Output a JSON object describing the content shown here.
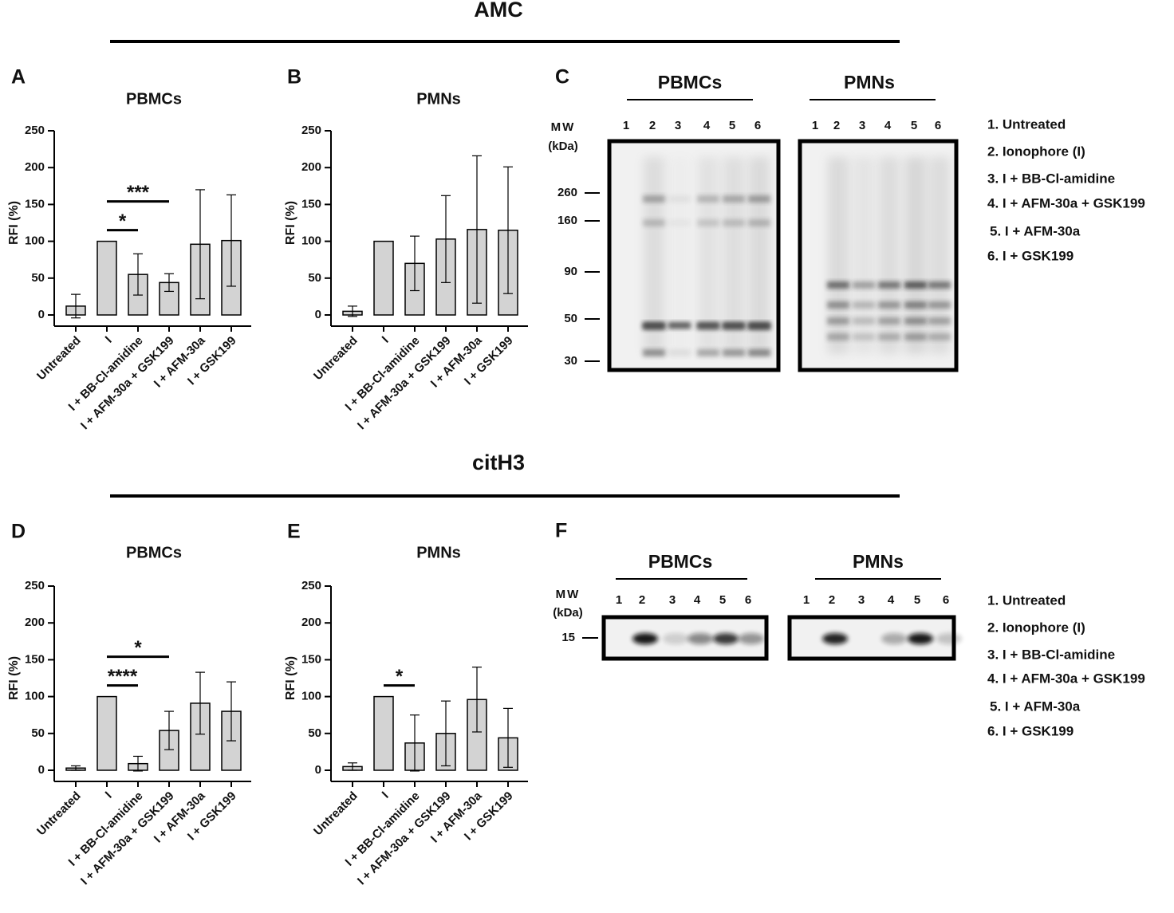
{
  "sections": [
    {
      "title": "AMC"
    },
    {
      "title": "citH3"
    }
  ],
  "chart_data": [
    {
      "type": "bar",
      "panel": "A",
      "title": "PBMCs",
      "y_label": "RFI (%)",
      "categories": [
        "Untreated",
        "I",
        "I + BB-Cl-amidine",
        "I + AFM-30a + GSK199",
        "I + AFM-30a",
        "I + GSK199"
      ],
      "values": [
        12,
        100,
        55,
        44,
        96,
        101
      ],
      "errors": [
        16,
        0,
        28,
        12,
        74,
        62
      ],
      "color": "#d3d3d3",
      "ylim": [
        0,
        250
      ],
      "yticks": [
        0,
        50,
        100,
        150,
        200,
        250
      ],
      "significance": [
        {
          "between": [
            "I",
            "I + BB-Cl-amidine"
          ],
          "label": "*"
        },
        {
          "between": [
            "I",
            "I + AFM-30a + GSK199"
          ],
          "label": "***"
        }
      ]
    },
    {
      "type": "bar",
      "panel": "B",
      "title": "PMNs",
      "y_label": "RFI (%)",
      "categories": [
        "Untreated",
        "I",
        "I + BB-Cl-amidine",
        "I + AFM-30a + GSK199",
        "I + AFM-30a",
        "I + GSK199"
      ],
      "values": [
        5,
        100,
        70,
        103,
        116,
        115
      ],
      "errors": [
        7,
        0,
        37,
        59,
        100,
        86
      ],
      "color": "#d3d3d3",
      "ylim": [
        0,
        250
      ],
      "yticks": [
        0,
        50,
        100,
        150,
        200,
        250
      ],
      "significance": []
    },
    {
      "type": "bar",
      "panel": "D",
      "title": "PBMCs",
      "y_label": "RFI (%)",
      "categories": [
        "Untreated",
        "I",
        "I + BB-Cl-amidine",
        "I + AFM-30a + GSK199",
        "I + AFM-30a",
        "I + GSK199"
      ],
      "values": [
        3,
        100,
        9,
        54,
        91,
        80
      ],
      "errors": [
        3,
        0,
        10,
        26,
        42,
        40
      ],
      "color": "#d3d3d3",
      "ylim": [
        0,
        250
      ],
      "yticks": [
        0,
        50,
        100,
        150,
        200,
        250
      ],
      "significance": [
        {
          "between": [
            "I",
            "I + BB-Cl-amidine"
          ],
          "label": "****"
        },
        {
          "between": [
            "I",
            "I + AFM-30a + GSK199"
          ],
          "label": "*"
        }
      ]
    },
    {
      "type": "bar",
      "panel": "E",
      "title": "PMNs",
      "y_label": "RFI (%)",
      "categories": [
        "Untreated",
        "I",
        "I + BB-Cl-amidine",
        "I + AFM-30a + GSK199",
        "I + AFM-30a",
        "I + GSK199"
      ],
      "values": [
        5,
        100,
        37,
        50,
        96,
        44
      ],
      "errors": [
        5,
        0,
        38,
        44,
        44,
        40
      ],
      "color": "#d3d3d3",
      "ylim": [
        0,
        250
      ],
      "yticks": [
        0,
        50,
        100,
        150,
        200,
        250
      ],
      "significance": [
        {
          "between": [
            "I",
            "I + BB-Cl-amidine"
          ],
          "label": "*"
        }
      ]
    }
  ],
  "blots": [
    {
      "panel": "C",
      "mw_label": "MW",
      "mw_unit": "(kDa)",
      "mw_markers": [
        "260",
        "160",
        "90",
        "50",
        "30"
      ],
      "groups": [
        {
          "title": "PBMCs",
          "lanes": [
            "1",
            "2",
            "3",
            "4",
            "5",
            "6"
          ]
        },
        {
          "title": "PMNs",
          "lanes": [
            "1",
            "2",
            "3",
            "4",
            "5",
            "6"
          ]
        }
      ],
      "legend": [
        "1. Untreated",
        "2. Ionophore (I)",
        "3. I + BB-Cl-amidine",
        "4. I + AFM-30a + GSK199",
        "5. I + AFM-30a",
        "6. I + GSK199"
      ]
    },
    {
      "panel": "F",
      "mw_label": "MW",
      "mw_unit": "(kDa)",
      "mw_markers": [
        "15"
      ],
      "groups": [
        {
          "title": "PBMCs",
          "lanes": [
            "1",
            "2",
            "3",
            "4",
            "5",
            "6"
          ]
        },
        {
          "title": "PMNs",
          "lanes": [
            "1",
            "2",
            "3",
            "4",
            "5",
            "6"
          ]
        }
      ],
      "legend": [
        "1. Untreated",
        "2. Ionophore (I)",
        "3. I + BB-Cl-amidine",
        "4. I + AFM-30a + GSK199",
        "5. I + AFM-30a",
        "6. I + GSK199"
      ]
    }
  ]
}
